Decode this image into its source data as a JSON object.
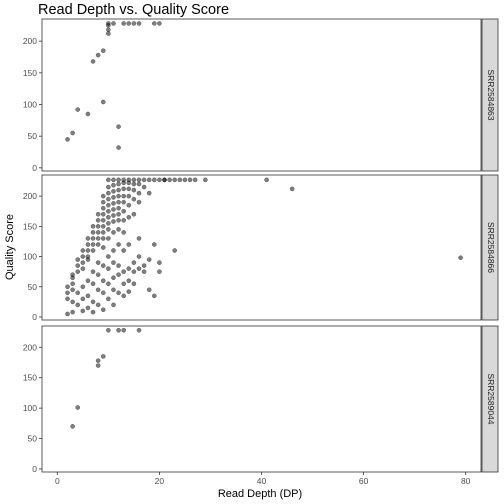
{
  "chart_data": {
    "type": "scatter",
    "title": "Read Depth vs. Quality Score",
    "xlabel": "Read Depth (DP)",
    "ylabel": "Quality Score",
    "xlim": [
      -3,
      83
    ],
    "ylim": [
      -5,
      235
    ],
    "x_ticks": [
      0,
      20,
      40,
      60,
      80
    ],
    "y_ticks": [
      0,
      50,
      100,
      150,
      200
    ],
    "grid": false,
    "point_color": "#000000",
    "point_opacity": 0.5,
    "panels": [
      {
        "label": "SRR2584863",
        "points": [
          [
            2,
            45
          ],
          [
            3,
            55
          ],
          [
            4,
            92
          ],
          [
            6,
            85
          ],
          [
            7,
            168
          ],
          [
            8,
            178
          ],
          [
            9,
            185
          ],
          [
            9,
            104
          ],
          [
            10,
            212
          ],
          [
            10,
            218
          ],
          [
            10,
            225
          ],
          [
            10,
            228
          ],
          [
            11,
            228
          ],
          [
            12,
            65
          ],
          [
            12,
            32
          ],
          [
            13,
            228
          ],
          [
            14,
            228
          ],
          [
            15,
            228
          ],
          [
            16,
            228
          ],
          [
            19,
            228
          ],
          [
            20,
            228
          ]
        ]
      },
      {
        "label": "SRR2584866",
        "points": [
          [
            2,
            50
          ],
          [
            2,
            40
          ],
          [
            2,
            30
          ],
          [
            2,
            5
          ],
          [
            3,
            70
          ],
          [
            3,
            65
          ],
          [
            3,
            55
          ],
          [
            3,
            45
          ],
          [
            3,
            25
          ],
          [
            3,
            8
          ],
          [
            4,
            95
          ],
          [
            4,
            85
          ],
          [
            4,
            75
          ],
          [
            4,
            40
          ],
          [
            4,
            20
          ],
          [
            5,
            110
          ],
          [
            5,
            100
          ],
          [
            5,
            90
          ],
          [
            5,
            80
          ],
          [
            5,
            50
          ],
          [
            5,
            30
          ],
          [
            5,
            10
          ],
          [
            6,
            130
          ],
          [
            6,
            120
          ],
          [
            6,
            110
          ],
          [
            6,
            100
          ],
          [
            6,
            95
          ],
          [
            6,
            60
          ],
          [
            6,
            35
          ],
          [
            6,
            15
          ],
          [
            7,
            150
          ],
          [
            7,
            140
          ],
          [
            7,
            130
          ],
          [
            7,
            120
          ],
          [
            7,
            110
          ],
          [
            7,
            75
          ],
          [
            7,
            55
          ],
          [
            7,
            25
          ],
          [
            7,
            8
          ],
          [
            8,
            170
          ],
          [
            8,
            160
          ],
          [
            8,
            150
          ],
          [
            8,
            140
          ],
          [
            8,
            130
          ],
          [
            8,
            120
          ],
          [
            8,
            90
          ],
          [
            8,
            70
          ],
          [
            8,
            45
          ],
          [
            8,
            20
          ],
          [
            9,
            200
          ],
          [
            9,
            190
          ],
          [
            9,
            180
          ],
          [
            9,
            170
          ],
          [
            9,
            160
          ],
          [
            9,
            150
          ],
          [
            9,
            140
          ],
          [
            9,
            130
          ],
          [
            9,
            115
          ],
          [
            9,
            85
          ],
          [
            9,
            60
          ],
          [
            9,
            40
          ],
          [
            9,
            12
          ],
          [
            10,
            227
          ],
          [
            10,
            215
          ],
          [
            10,
            205
          ],
          [
            10,
            195
          ],
          [
            10,
            185
          ],
          [
            10,
            175
          ],
          [
            10,
            165
          ],
          [
            10,
            155
          ],
          [
            10,
            145
          ],
          [
            10,
            130
          ],
          [
            10,
            100
          ],
          [
            10,
            80
          ],
          [
            10,
            55
          ],
          [
            10,
            30
          ],
          [
            11,
            227
          ],
          [
            11,
            218
          ],
          [
            11,
            208
          ],
          [
            11,
            198
          ],
          [
            11,
            188
          ],
          [
            11,
            178
          ],
          [
            11,
            168
          ],
          [
            11,
            158
          ],
          [
            11,
            140
          ],
          [
            11,
            110
          ],
          [
            11,
            90
          ],
          [
            11,
            65
          ],
          [
            11,
            45
          ],
          [
            11,
            20
          ],
          [
            12,
            227
          ],
          [
            12,
            220
          ],
          [
            12,
            210
          ],
          [
            12,
            200
          ],
          [
            12,
            190
          ],
          [
            12,
            180
          ],
          [
            12,
            170
          ],
          [
            12,
            160
          ],
          [
            12,
            145
          ],
          [
            12,
            120
          ],
          [
            12,
            85
          ],
          [
            12,
            70
          ],
          [
            12,
            40
          ],
          [
            13,
            227
          ],
          [
            13,
            222
          ],
          [
            13,
            212
          ],
          [
            13,
            200
          ],
          [
            13,
            190
          ],
          [
            13,
            175
          ],
          [
            13,
            160
          ],
          [
            13,
            140
          ],
          [
            13,
            110
          ],
          [
            13,
            75
          ],
          [
            13,
            55
          ],
          [
            13,
            35
          ],
          [
            14,
            227
          ],
          [
            14,
            222
          ],
          [
            14,
            212
          ],
          [
            14,
            200
          ],
          [
            14,
            185
          ],
          [
            14,
            165
          ],
          [
            14,
            120
          ],
          [
            14,
            80
          ],
          [
            14,
            60
          ],
          [
            14,
            42
          ],
          [
            15,
            227
          ],
          [
            15,
            220
          ],
          [
            15,
            210
          ],
          [
            15,
            195
          ],
          [
            15,
            170
          ],
          [
            15,
            90
          ],
          [
            15,
            75
          ],
          [
            15,
            55
          ],
          [
            16,
            227
          ],
          [
            16,
            220
          ],
          [
            16,
            205
          ],
          [
            16,
            190
          ],
          [
            16,
            130
          ],
          [
            16,
            100
          ],
          [
            16,
            80
          ],
          [
            17,
            227
          ],
          [
            17,
            215
          ],
          [
            17,
            85
          ],
          [
            17,
            75
          ],
          [
            18,
            227
          ],
          [
            18,
            205
          ],
          [
            18,
            95
          ],
          [
            18,
            45
          ],
          [
            19,
            227
          ],
          [
            19,
            120
          ],
          [
            19,
            35
          ],
          [
            20,
            227
          ],
          [
            20,
            75
          ],
          [
            20,
            90
          ],
          [
            21,
            227
          ],
          [
            21,
            227
          ],
          [
            22,
            227
          ],
          [
            23,
            227
          ],
          [
            23,
            110
          ],
          [
            24,
            227
          ],
          [
            25,
            227
          ],
          [
            26,
            227
          ],
          [
            27,
            227
          ],
          [
            29,
            227
          ],
          [
            41,
            227
          ],
          [
            46,
            212
          ],
          [
            79,
            98
          ]
        ]
      },
      {
        "label": "SRR2589044",
        "points": [
          [
            3,
            70
          ],
          [
            4,
            101
          ],
          [
            8,
            170
          ],
          [
            8,
            178
          ],
          [
            9,
            185
          ],
          [
            10,
            228
          ],
          [
            12,
            228
          ],
          [
            13,
            228
          ],
          [
            16,
            228
          ]
        ]
      }
    ]
  }
}
